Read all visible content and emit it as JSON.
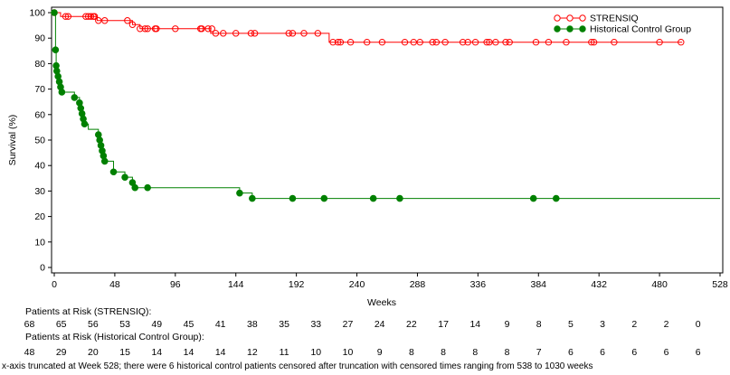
{
  "chart_data": {
    "type": "line",
    "title": "",
    "xlabel": "Weeks",
    "ylabel": "Survival (%)",
    "xlim": [
      0,
      528
    ],
    "ylim": [
      0,
      100
    ],
    "xticks": [
      0,
      48,
      96,
      144,
      192,
      240,
      288,
      336,
      384,
      432,
      480,
      528
    ],
    "yticks": [
      0,
      10,
      20,
      30,
      40,
      50,
      60,
      70,
      80,
      90,
      100
    ],
    "legend_position": "top-right",
    "step": true,
    "series": [
      {
        "name": "STRENSIQ",
        "color": "#ff0000",
        "marker": "open-circle",
        "steps": [
          [
            0,
            100
          ],
          [
            5,
            98.5
          ],
          [
            24,
            98.5
          ],
          [
            34,
            96.9
          ],
          [
            58,
            96.9
          ],
          [
            62,
            95.3
          ],
          [
            68,
            93.7
          ],
          [
            114,
            93.7
          ],
          [
            124,
            91.9
          ],
          [
            154,
            91.9
          ],
          [
            218,
            88.4
          ],
          [
            498,
            88.4
          ]
        ],
        "censored": [
          [
            0,
            100
          ],
          [
            9,
            98.5
          ],
          [
            11,
            98.5
          ],
          [
            25,
            98.5
          ],
          [
            27,
            98.5
          ],
          [
            29,
            98.5
          ],
          [
            31,
            98.5
          ],
          [
            32,
            98.5
          ],
          [
            35,
            96.9
          ],
          [
            40,
            96.9
          ],
          [
            58,
            96.9
          ],
          [
            62,
            95.3
          ],
          [
            68,
            93.7
          ],
          [
            72,
            93.7
          ],
          [
            74,
            93.7
          ],
          [
            80,
            93.7
          ],
          [
            81,
            93.7
          ],
          [
            96,
            93.7
          ],
          [
            116,
            93.7
          ],
          [
            117,
            93.7
          ],
          [
            122,
            93.7
          ],
          [
            125,
            93.7
          ],
          [
            128,
            91.9
          ],
          [
            134,
            91.9
          ],
          [
            144,
            91.9
          ],
          [
            156,
            91.9
          ],
          [
            159,
            91.9
          ],
          [
            186,
            91.9
          ],
          [
            189,
            91.9
          ],
          [
            198,
            91.9
          ],
          [
            209,
            91.9
          ],
          [
            221,
            88.4
          ],
          [
            225,
            88.4
          ],
          [
            227,
            88.4
          ],
          [
            235,
            88.4
          ],
          [
            248,
            88.4
          ],
          [
            260,
            88.4
          ],
          [
            278,
            88.4
          ],
          [
            285,
            88.4
          ],
          [
            290,
            88.4
          ],
          [
            300,
            88.4
          ],
          [
            303,
            88.4
          ],
          [
            310,
            88.4
          ],
          [
            324,
            88.4
          ],
          [
            328,
            88.4
          ],
          [
            334,
            88.4
          ],
          [
            343,
            88.4
          ],
          [
            345,
            88.4
          ],
          [
            350,
            88.4
          ],
          [
            358,
            88.4
          ],
          [
            361,
            88.4
          ],
          [
            382,
            88.4
          ],
          [
            392,
            88.4
          ],
          [
            406,
            88.4
          ],
          [
            426,
            88.4
          ],
          [
            428,
            88.4
          ],
          [
            444,
            88.4
          ],
          [
            480,
            88.4
          ],
          [
            497,
            88.4
          ]
        ]
      },
      {
        "name": "Historical Control Group",
        "color": "#008000",
        "marker": "filled-circle",
        "steps": [
          [
            0,
            100
          ],
          [
            1,
            85.4
          ],
          [
            1.5,
            79.2
          ],
          [
            2,
            77.1
          ],
          [
            3,
            75.0
          ],
          [
            4,
            72.9
          ],
          [
            5,
            70.8
          ],
          [
            6,
            68.8
          ],
          [
            16,
            66.7
          ],
          [
            20,
            64.6
          ],
          [
            21,
            62.5
          ],
          [
            22,
            60.4
          ],
          [
            23,
            58.3
          ],
          [
            24,
            56.3
          ],
          [
            27,
            54.2
          ],
          [
            35,
            52.1
          ],
          [
            36,
            50.0
          ],
          [
            37,
            47.9
          ],
          [
            38,
            45.8
          ],
          [
            39,
            43.8
          ],
          [
            40,
            41.7
          ],
          [
            47,
            37.5
          ],
          [
            56,
            35.4
          ],
          [
            62,
            33.3
          ],
          [
            64,
            31.3
          ],
          [
            74,
            31.3
          ],
          [
            147,
            29.2
          ],
          [
            157,
            27.1
          ],
          [
            528,
            27.1
          ]
        ],
        "censored": [
          [
            0,
            100
          ],
          [
            1,
            85.4
          ],
          [
            1.5,
            79.2
          ],
          [
            2,
            77.1
          ],
          [
            3,
            75.0
          ],
          [
            4,
            72.9
          ],
          [
            5,
            70.8
          ],
          [
            6,
            68.8
          ],
          [
            16,
            66.7
          ],
          [
            20,
            64.6
          ],
          [
            21,
            62.5
          ],
          [
            22,
            60.4
          ],
          [
            23,
            58.3
          ],
          [
            24,
            56.3
          ],
          [
            35,
            52.1
          ],
          [
            36,
            50.0
          ],
          [
            37,
            47.9
          ],
          [
            38,
            45.8
          ],
          [
            39,
            43.8
          ],
          [
            40,
            41.7
          ],
          [
            47,
            37.5
          ],
          [
            56,
            35.4
          ],
          [
            62,
            33.3
          ],
          [
            64,
            31.3
          ],
          [
            74,
            31.3
          ],
          [
            147,
            29.2
          ],
          [
            157,
            27.1
          ],
          [
            189,
            27.1
          ],
          [
            214,
            27.1
          ],
          [
            253,
            27.1
          ],
          [
            274,
            27.1
          ],
          [
            380,
            27.1
          ],
          [
            398,
            27.1
          ]
        ]
      }
    ]
  },
  "risk_table": {
    "strensiq_label": "Patients at Risk (STRENSIQ):",
    "strensiq": [
      "68",
      "65",
      "56",
      "53",
      "49",
      "45",
      "41",
      "38",
      "35",
      "33",
      "27",
      "24",
      "22",
      "17",
      "14",
      "9",
      "8",
      "5",
      "3",
      "2",
      "2",
      "0"
    ],
    "hcg_label": "Patients at Risk (Historical Control Group):",
    "hcg": [
      "48",
      "29",
      "20",
      "15",
      "14",
      "14",
      "14",
      "12",
      "11",
      "10",
      "10",
      "9",
      "8",
      "8",
      "8",
      "8",
      "7",
      "6",
      "6",
      "6",
      "6",
      "6"
    ]
  },
  "footnote": "x-axis truncated at Week 528; there were 6 historical control patients censored after truncation with censored times ranging from 538 to 1030 weeks"
}
